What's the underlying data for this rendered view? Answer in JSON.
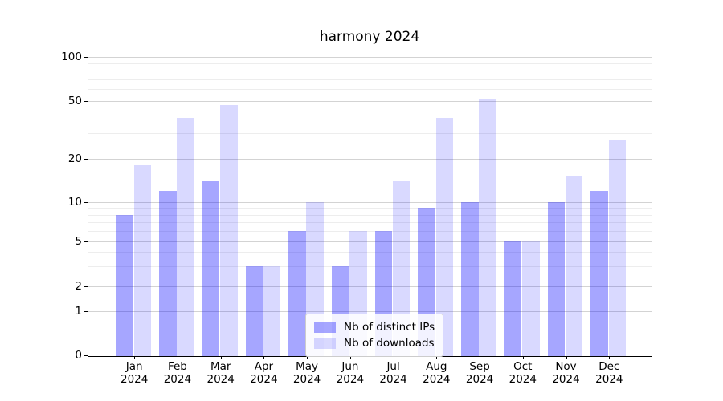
{
  "chart_data": {
    "type": "bar",
    "title": "harmony 2024",
    "categories": [
      "Jan",
      "Feb",
      "Mar",
      "Apr",
      "May",
      "Jun",
      "Jul",
      "Aug",
      "Sep",
      "Oct",
      "Nov",
      "Dec"
    ],
    "year_label": "2024",
    "series": [
      {
        "name": "Nb of distinct IPs",
        "color": "rgba(0,0,255,0.35)",
        "values": [
          8,
          12,
          14,
          3,
          6,
          3,
          6,
          9,
          10,
          5,
          10,
          12
        ]
      },
      {
        "name": "Nb of downloads",
        "color": "rgba(0,0,255,0.15)",
        "values": [
          18,
          38,
          47,
          3,
          10,
          6,
          14,
          38,
          51,
          5,
          15,
          27
        ]
      }
    ],
    "xlabel": "",
    "ylabel": "",
    "y_axis": {
      "scale": "symlog",
      "ticks": [
        0,
        1,
        2,
        5,
        10,
        20,
        50,
        100
      ],
      "minor_ticks": [
        3,
        4,
        6,
        7,
        8,
        9,
        30,
        40,
        60,
        70,
        80,
        90
      ],
      "range": [
        0,
        120
      ]
    },
    "grid": true,
    "legend": {
      "position": "lower-center"
    },
    "colors": {
      "major_grid": "#d3d3d3",
      "minor_grid": "#ededed",
      "spine": "#000000",
      "background": "#ffffff"
    }
  }
}
